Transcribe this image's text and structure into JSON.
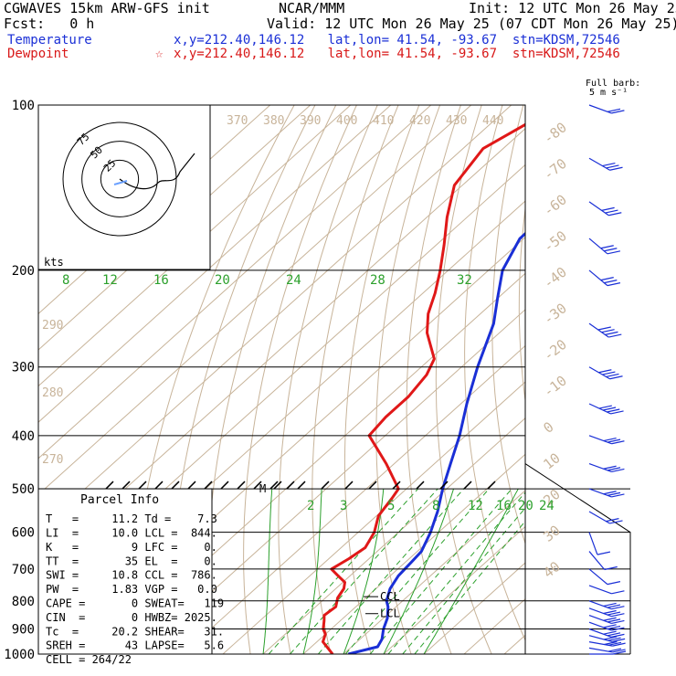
{
  "header": {
    "model": "CGWAVES 15km ARW-GFS init",
    "org": "NCAR/MMM",
    "init": "Init: 12 UTC Mon 26 May 25",
    "fcst": "Fcst:   0 h",
    "valid": "Valid: 12 UTC Mon 26 May 25 (07 CDT Mon 26 May 25)",
    "temperature_label": "Temperature",
    "temperature_info": "x,y=212.40,146.12   lat,lon= 41.54, -93.67  stn=KDSM,72546",
    "dewpoint_label": "Dewpoint",
    "dewpoint_info": "x,y=212.40,146.12   lat,lon= 41.54, -93.67  stn=KDSM,72546",
    "dewpoint_star": "☆"
  },
  "colors": {
    "temperature": "#1a2fd6",
    "dewpoint": "#e01818",
    "isotherm": "#c8b49a",
    "dry_adiabat": "#c8b49a",
    "mixing_ratio": "#2ca02c",
    "isobar": "#000000",
    "barb": "#1a2fd6"
  },
  "barb_key": {
    "line1": "Full barb:",
    "line2": "5 m s⁻¹"
  },
  "hodograph": {
    "units": "kts",
    "ring_labels": [
      "75",
      "50",
      "25"
    ]
  },
  "parcel": {
    "title": "Parcel Info",
    "rows": [
      {
        "l": "T   =     11.2 Td =    7.3"
      },
      {
        "l": "LI  =     10.0 LCL =  844."
      },
      {
        "l": "K   =        9 LFC =    0."
      },
      {
        "l": "TT  =       35 EL  =    0."
      },
      {
        "l": "SWI =     10.8 CCL =  786."
      },
      {
        "l": "PW  =     1.83 VGP =   0.0"
      },
      {
        "l": "CAPE =       0 SWEAT=   119"
      },
      {
        "l": "CIN  =       0 HWBZ= 2025."
      },
      {
        "l": "Tc  =     20.2 SHEAR=   31."
      },
      {
        "l": "SREH =      43 LAPSE=   5.6"
      },
      {
        "l": "CELL = 264/22"
      }
    ]
  },
  "markers": {
    "ccl": "CCL",
    "lcl": "LCL",
    "m": "M"
  },
  "chart_data": {
    "type": "line",
    "title": "",
    "pressure_levels": [
      100,
      200,
      300,
      400,
      500,
      600,
      700,
      800,
      900,
      1000
    ],
    "isotherm_labels": [
      "-80",
      "-70",
      "-60",
      "-50",
      "-40",
      "-30",
      "-20",
      "-10",
      "0",
      "10",
      "20",
      "30",
      "40"
    ],
    "theta_labels": [
      "370",
      "380",
      "390",
      "400",
      "410",
      "420",
      "430",
      "440"
    ],
    "theta_low_labels": [
      "290",
      "280",
      "270"
    ],
    "mixing_ratio_upper": [
      "8",
      "12",
      "16",
      "20",
      "24",
      "28",
      "32"
    ],
    "mixing_ratio_lower": [
      "2",
      "3",
      "5",
      "8",
      "12",
      "16",
      "20",
      "24"
    ],
    "series": [
      {
        "name": "Temperature",
        "points": [
          [
            1000,
            11.2
          ],
          [
            970,
            16.5
          ],
          [
            940,
            15.5
          ],
          [
            900,
            13.0
          ],
          [
            860,
            11.0
          ],
          [
            820,
            8.0
          ],
          [
            800,
            6.0
          ],
          [
            760,
            3.5
          ],
          [
            720,
            2.0
          ],
          [
            680,
            1.5
          ],
          [
            650,
            1.0
          ],
          [
            600,
            -2.0
          ],
          [
            550,
            -6.0
          ],
          [
            500,
            -11.0
          ],
          [
            450,
            -16.0
          ],
          [
            400,
            -21.5
          ],
          [
            350,
            -28.5
          ],
          [
            300,
            -36.0
          ],
          [
            250,
            -44.0
          ],
          [
            225,
            -50.0
          ],
          [
            200,
            -56.5
          ],
          [
            175,
            -61.0
          ],
          [
            150,
            -61.0
          ],
          [
            125,
            -58.5
          ],
          [
            100,
            -56.0
          ]
        ]
      },
      {
        "name": "Dewpoint",
        "points": [
          [
            1000,
            7.3
          ],
          [
            980,
            5.0
          ],
          [
            950,
            1.5
          ],
          [
            920,
            0.0
          ],
          [
            900,
            -2.0
          ],
          [
            870,
            -4.0
          ],
          [
            850,
            -5.5
          ],
          [
            820,
            -5.0
          ],
          [
            790,
            -7.0
          ],
          [
            760,
            -8.0
          ],
          [
            740,
            -9.5
          ],
          [
            720,
            -13.0
          ],
          [
            700,
            -16.5
          ],
          [
            670,
            -15.0
          ],
          [
            640,
            -14.0
          ],
          [
            600,
            -16.0
          ],
          [
            560,
            -19.5
          ],
          [
            520,
            -21.0
          ],
          [
            500,
            -22.0
          ],
          [
            450,
            -32.0
          ],
          [
            400,
            -44.0
          ],
          [
            370,
            -45.0
          ],
          [
            340,
            -45.0
          ],
          [
            310,
            -46.5
          ],
          [
            290,
            -49.0
          ],
          [
            260,
            -58.0
          ],
          [
            240,
            -63.0
          ],
          [
            220,
            -67.0
          ],
          [
            200,
            -72.0
          ],
          [
            180,
            -78.0
          ],
          [
            160,
            -85.0
          ],
          [
            140,
            -92.0
          ],
          [
            120,
            -95.0
          ],
          [
            100,
            -88.0
          ]
        ]
      }
    ],
    "wind_barbs": [
      {
        "p": 1000,
        "dir": 270,
        "spd": 5
      },
      {
        "p": 975,
        "dir": 260,
        "spd": 10
      },
      {
        "p": 950,
        "dir": 260,
        "spd": 15
      },
      {
        "p": 925,
        "dir": 255,
        "spd": 15
      },
      {
        "p": 900,
        "dir": 250,
        "spd": 15
      },
      {
        "p": 875,
        "dir": 250,
        "spd": 15
      },
      {
        "p": 850,
        "dir": 250,
        "spd": 15
      },
      {
        "p": 825,
        "dir": 250,
        "spd": 15
      },
      {
        "p": 800,
        "dir": 250,
        "spd": 15
      },
      {
        "p": 750,
        "dir": 250,
        "spd": 5
      },
      {
        "p": 700,
        "dir": 230,
        "spd": 5
      },
      {
        "p": 650,
        "dir": 220,
        "spd": 5
      },
      {
        "p": 600,
        "dir": 200,
        "spd": 5
      },
      {
        "p": 550,
        "dir": 240,
        "spd": 10
      },
      {
        "p": 500,
        "dir": 250,
        "spd": 15
      },
      {
        "p": 450,
        "dir": 250,
        "spd": 15
      },
      {
        "p": 400,
        "dir": 250,
        "spd": 15
      },
      {
        "p": 350,
        "dir": 245,
        "spd": 20
      },
      {
        "p": 300,
        "dir": 240,
        "spd": 20
      },
      {
        "p": 250,
        "dir": 235,
        "spd": 20
      },
      {
        "p": 200,
        "dir": 230,
        "spd": 15
      },
      {
        "p": 175,
        "dir": 230,
        "spd": 15
      },
      {
        "p": 150,
        "dir": 235,
        "spd": 15
      },
      {
        "p": 125,
        "dir": 240,
        "spd": 15
      },
      {
        "p": 100,
        "dir": 250,
        "spd": 10
      }
    ]
  }
}
